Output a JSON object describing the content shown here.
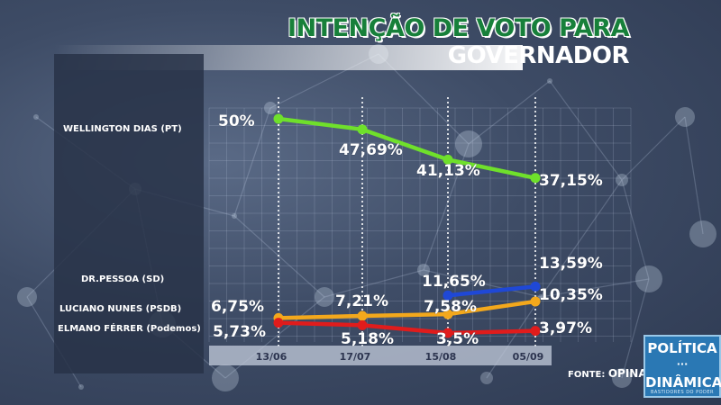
{
  "header": {
    "title_line1": "INTENÇÃO DE VOTO PARA",
    "title_line2": "GOVERNADOR"
  },
  "candidates": [
    {
      "label": "WELLINGTON DIAS (PT)"
    },
    {
      "label": "DR.PESSOA (SD)"
    },
    {
      "label": "LUCIANO NUNES  (PSDB)"
    },
    {
      "label": "ELMANO FÉRRER  (Podemos)"
    }
  ],
  "footer": {
    "source_prefix": "FONTE:",
    "source_name": "OPINAR"
  },
  "logo": {
    "line1": "POLÍTICA",
    "line2": "···",
    "line3": "DINÂMICA",
    "line4": "BASTIDORES DO PODER"
  },
  "colors": {
    "title_green": "#17803a",
    "wellington": "#6fe02b",
    "pessoa": "#1f48d6",
    "luciano": "#f3a81c",
    "elmano": "#e01c1c"
  },
  "chart_data": {
    "type": "line",
    "categories": [
      "13/06",
      "17/07",
      "15/08",
      "05/09"
    ],
    "ylim": [
      0,
      55
    ],
    "grid": true,
    "series": [
      {
        "name": "WELLINGTON DIAS (PT)",
        "color": "#6fe02b",
        "values": [
          50,
          47.69,
          41.13,
          37.15
        ],
        "labels": [
          "50%",
          "47,69%",
          "41,13%",
          "37,15%"
        ]
      },
      {
        "name": "DR.PESSOA (SD)",
        "color": "#1f48d6",
        "values": [
          null,
          null,
          11.65,
          13.59
        ],
        "labels": [
          null,
          null,
          "11,65%",
          "13,59%"
        ]
      },
      {
        "name": "LUCIANO NUNES  (PSDB)",
        "color": "#f3a81c",
        "values": [
          6.75,
          7.21,
          7.58,
          10.35
        ],
        "labels": [
          "6,75%",
          "7,21%",
          "7,58%",
          "10,35%"
        ]
      },
      {
        "name": "ELMANO FÉRRER  (Podemos)",
        "color": "#e01c1c",
        "values": [
          5.73,
          5.18,
          3.5,
          3.97
        ],
        "labels": [
          "5,73%",
          "5,18%",
          "3,5%",
          "3,97%"
        ]
      }
    ]
  }
}
